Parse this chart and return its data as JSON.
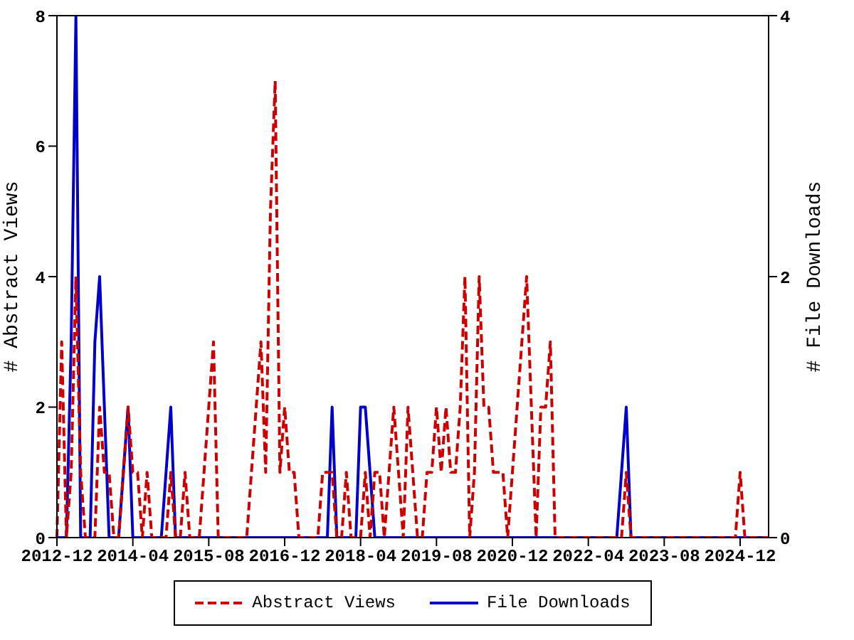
{
  "chart_data": {
    "type": "line",
    "xlabel": null,
    "ylabel": "# Abstract Views",
    "y2label": "# File Downloads",
    "x": [
      "2012-12",
      "2013-01",
      "2013-02",
      "2013-03",
      "2013-04",
      "2013-05",
      "2013-06",
      "2013-07",
      "2013-08",
      "2013-09",
      "2013-10",
      "2013-11",
      "2013-12",
      "2014-01",
      "2014-02",
      "2014-03",
      "2014-04",
      "2014-05",
      "2014-06",
      "2014-07",
      "2014-08",
      "2014-09",
      "2014-10",
      "2014-11",
      "2014-12",
      "2015-01",
      "2015-02",
      "2015-03",
      "2015-04",
      "2015-05",
      "2015-06",
      "2015-07",
      "2015-08",
      "2015-09",
      "2015-10",
      "2015-11",
      "2015-12",
      "2016-01",
      "2016-02",
      "2016-03",
      "2016-04",
      "2016-05",
      "2016-06",
      "2016-07",
      "2016-08",
      "2016-09",
      "2016-10",
      "2016-11",
      "2016-12",
      "2017-01",
      "2017-02",
      "2017-03",
      "2017-04",
      "2017-05",
      "2017-06",
      "2017-07",
      "2017-08",
      "2017-09",
      "2017-10",
      "2017-11",
      "2017-12",
      "2018-01",
      "2018-02",
      "2018-03",
      "2018-04",
      "2018-05",
      "2018-06",
      "2018-07",
      "2018-08",
      "2018-09",
      "2018-10",
      "2018-11",
      "2018-12",
      "2019-01",
      "2019-02",
      "2019-03",
      "2019-04",
      "2019-05",
      "2019-06",
      "2019-07",
      "2019-08",
      "2019-09",
      "2019-10",
      "2019-11",
      "2019-12",
      "2020-01",
      "2020-02",
      "2020-03",
      "2020-04",
      "2020-05",
      "2020-06",
      "2020-07",
      "2020-08",
      "2020-09",
      "2020-10",
      "2020-11",
      "2020-12",
      "2021-01",
      "2021-02",
      "2021-03",
      "2021-04",
      "2021-05",
      "2021-06",
      "2021-07",
      "2021-08",
      "2021-09",
      "2021-10",
      "2021-11",
      "2021-12",
      "2022-01",
      "2022-02",
      "2022-03",
      "2022-04",
      "2022-05",
      "2022-06",
      "2022-07",
      "2022-08",
      "2022-09",
      "2022-10",
      "2022-11",
      "2022-12",
      "2023-01",
      "2023-02",
      "2023-03",
      "2023-04",
      "2023-05",
      "2023-06",
      "2023-07",
      "2023-08",
      "2023-09",
      "2023-10",
      "2023-11",
      "2023-12",
      "2024-01",
      "2024-02",
      "2024-03",
      "2024-04",
      "2024-05",
      "2024-06",
      "2024-07",
      "2024-08",
      "2024-09",
      "2024-10",
      "2024-11",
      "2024-12",
      "2025-01",
      "2025-02",
      "2025-03",
      "2025-04",
      "2025-05",
      "2025-06"
    ],
    "series": [
      {
        "name": "Abstract Views",
        "color": "#cc0000",
        "line_style": "dashed",
        "values": [
          0,
          3,
          0,
          1,
          4,
          1,
          0,
          0,
          0,
          2,
          1,
          1,
          0,
          0,
          1,
          2,
          1,
          1,
          0,
          1,
          0,
          0,
          0,
          0,
          1,
          0,
          0,
          1,
          0,
          0,
          0,
          1,
          2,
          3,
          0,
          0,
          0,
          0,
          0,
          0,
          0,
          1,
          2,
          3,
          1,
          5,
          7,
          1,
          2,
          1,
          1,
          0,
          0,
          0,
          0,
          0,
          1,
          1,
          1,
          0,
          0,
          1,
          0,
          0,
          0,
          1,
          0,
          1,
          1,
          0,
          1,
          2,
          1,
          0,
          2,
          1,
          0,
          0,
          1,
          1,
          2,
          1,
          2,
          1,
          1,
          2,
          4,
          0,
          1,
          4,
          2,
          2,
          1,
          1,
          1,
          0,
          1,
          2,
          3,
          4,
          2,
          0,
          2,
          2,
          3,
          0,
          0,
          0,
          0,
          0,
          0,
          0,
          0,
          0,
          0,
          0,
          0,
          0,
          0,
          0,
          1,
          0,
          0,
          0,
          0,
          0,
          0,
          0,
          0,
          0,
          0,
          0,
          0,
          0,
          0,
          0,
          0,
          0,
          0,
          0,
          0,
          0,
          0,
          0,
          1,
          0,
          0,
          0,
          0,
          0,
          0
        ]
      },
      {
        "name": "File Downloads",
        "color": "#0000cc",
        "line_style": "solid",
        "axis": "y2",
        "values": [
          0,
          0,
          0,
          1.5,
          4,
          0,
          0,
          0,
          1.5,
          2,
          1,
          0,
          0,
          0,
          0.5,
          1,
          0,
          0,
          0,
          0,
          0,
          0,
          0,
          0.5,
          1,
          0,
          0,
          0,
          0,
          0,
          0,
          0,
          0,
          0,
          0,
          0,
          0,
          0,
          0,
          0,
          0,
          0,
          0,
          0,
          0,
          0,
          0,
          0,
          0,
          0,
          0,
          0,
          0,
          0,
          0,
          0,
          0,
          0,
          1,
          0,
          0,
          0,
          0,
          0,
          1,
          1,
          0.5,
          0,
          0,
          0,
          0,
          0,
          0,
          0,
          0,
          0,
          0,
          0,
          0,
          0,
          0,
          0,
          0,
          0,
          0,
          0,
          0,
          0,
          0,
          0,
          0,
          0,
          0,
          0,
          0,
          0,
          0,
          0,
          0,
          0,
          0,
          0,
          0,
          0,
          0,
          0,
          0,
          0,
          0,
          0,
          0,
          0,
          0,
          0,
          0,
          0,
          0,
          0,
          0,
          0.5,
          1,
          0,
          0,
          0,
          0,
          0,
          0,
          0,
          0,
          0,
          0,
          0,
          0,
          0,
          0,
          0,
          0,
          0,
          0,
          0,
          0,
          0,
          0,
          0,
          0,
          0,
          0,
          0,
          0,
          0,
          0
        ]
      }
    ],
    "xlim": [
      "2012-12",
      "2025-06"
    ],
    "xticks": [
      "2012-12",
      "2014-04",
      "2015-08",
      "2016-12",
      "2018-04",
      "2019-08",
      "2020-12",
      "2022-04",
      "2023-08",
      "2024-12"
    ],
    "ylim": [
      0,
      8
    ],
    "yticks": [
      0,
      2,
      4,
      6,
      8
    ],
    "y2lim": [
      0,
      4
    ],
    "y2ticks": [
      0,
      2,
      4
    ],
    "legend": "bottom",
    "marker": "none"
  }
}
